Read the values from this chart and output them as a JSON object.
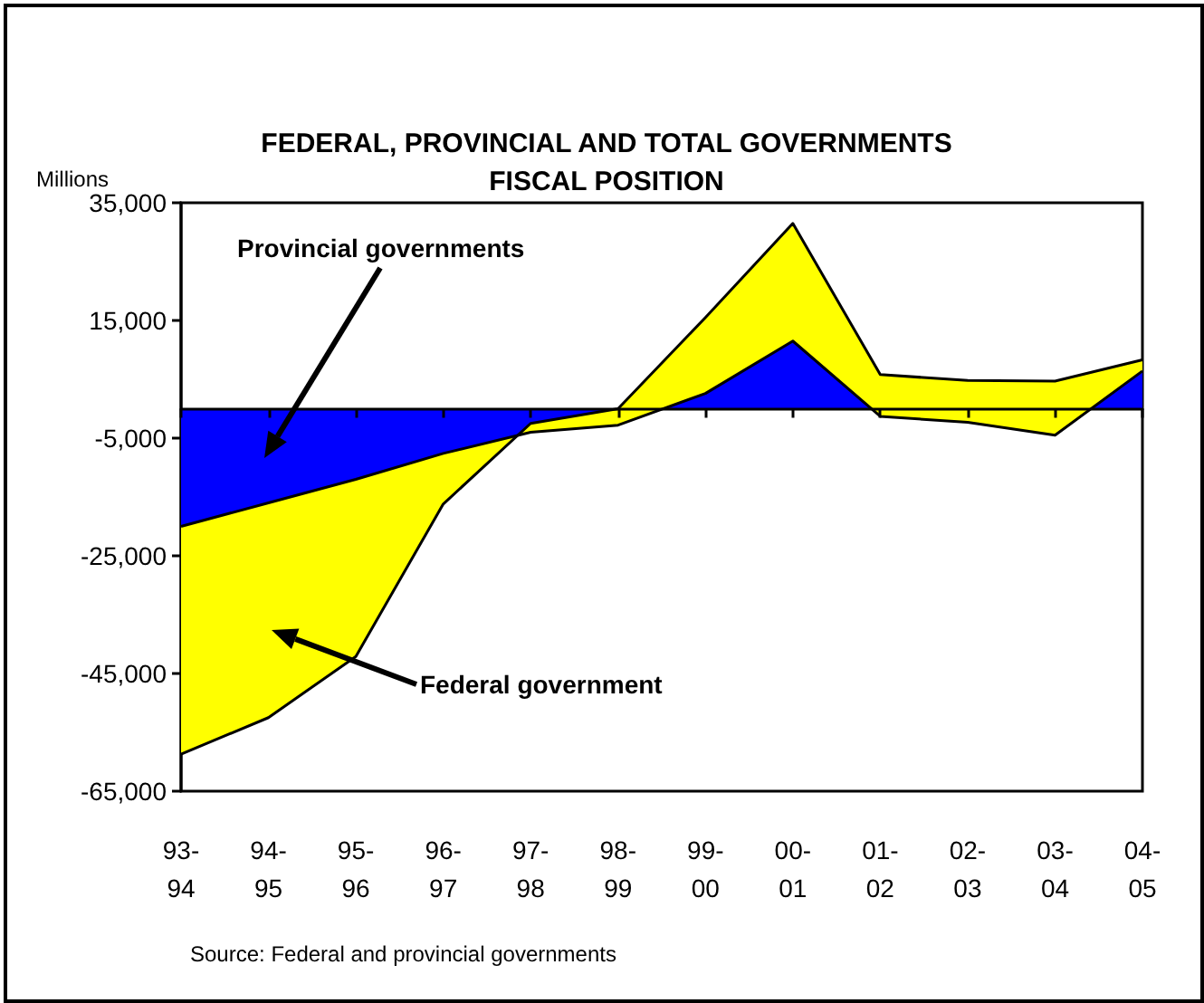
{
  "chart_data": {
    "type": "area",
    "stacked": true,
    "title": "FEDERAL, PROVINCIAL AND TOTAL GOVERNMENTS\nFISCAL POSITION",
    "ylabel": "Millions",
    "categories": [
      "93-94",
      "94-95",
      "95-96",
      "96-97",
      "97-98",
      "98-99",
      "99-00",
      "00-01",
      "01-02",
      "02-03",
      "03-04",
      "04-05"
    ],
    "series": [
      {
        "name": "Provincial governments",
        "color": "#0000ff",
        "values": [
          -20000,
          -16000,
          -12000,
          -7600,
          -4000,
          -2800,
          2600,
          11500,
          -1300,
          -2300,
          -4500,
          6400
        ]
      },
      {
        "name": "Federal government",
        "color": "#ffff00",
        "values": [
          -38700,
          -36500,
          -30100,
          -8600,
          1500,
          2800,
          12900,
          20000,
          7100,
          7100,
          9200,
          1900
        ]
      }
    ],
    "ylim": [
      -65000,
      35000
    ],
    "yticks": [
      {
        "value": -65000,
        "label": "-65,000"
      },
      {
        "value": -45000,
        "label": "-45,000"
      },
      {
        "value": -25000,
        "label": "-25,000"
      },
      {
        "value": -5000,
        "label": "-5,000"
      },
      {
        "value": 15000,
        "label": "15,000"
      },
      {
        "value": 35000,
        "label": "35,000"
      }
    ],
    "grid": false,
    "legend": false,
    "annotations": [
      "Source: Federal and provincial governments"
    ]
  }
}
